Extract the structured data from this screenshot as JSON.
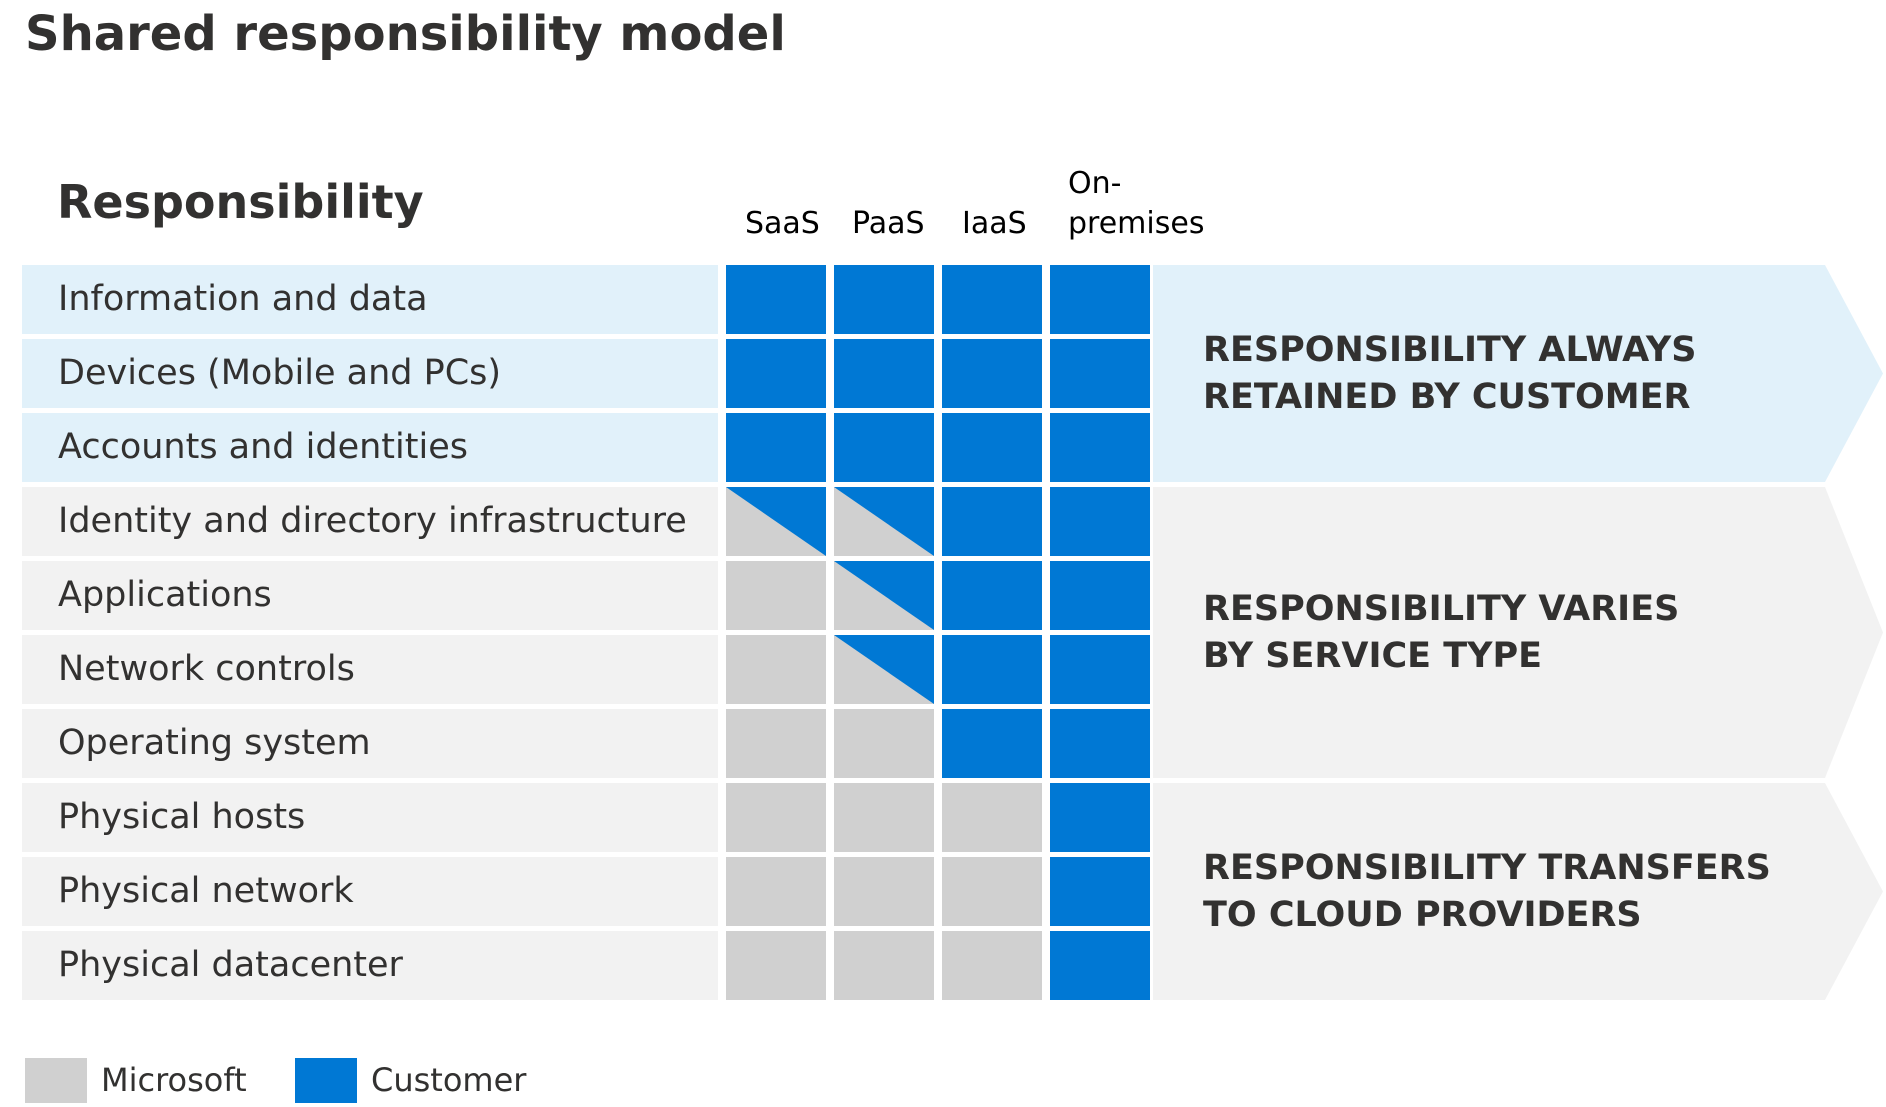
{
  "title": "Shared responsibility model",
  "header": {
    "responsibility": "Responsibility",
    "columns": [
      {
        "line1": "SaaS",
        "line2": ""
      },
      {
        "line1": "PaaS",
        "line2": ""
      },
      {
        "line1": "IaaS",
        "line2": ""
      },
      {
        "line1": "On-",
        "line2": "premises"
      }
    ]
  },
  "rows": [
    {
      "label": "Information and data",
      "zone": "customer",
      "cells": [
        "customer",
        "customer",
        "customer",
        "customer"
      ]
    },
    {
      "label": "Devices (Mobile and PCs)",
      "zone": "customer",
      "cells": [
        "customer",
        "customer",
        "customer",
        "customer"
      ]
    },
    {
      "label": "Accounts and identities",
      "zone": "customer",
      "cells": [
        "customer",
        "customer",
        "customer",
        "customer"
      ]
    },
    {
      "label": "Identity and directory infrastructure",
      "zone": "varies",
      "cells": [
        "shared",
        "shared",
        "customer",
        "customer"
      ]
    },
    {
      "label": "Applications",
      "zone": "varies",
      "cells": [
        "microsoft",
        "shared",
        "customer",
        "customer"
      ]
    },
    {
      "label": "Network controls",
      "zone": "varies",
      "cells": [
        "microsoft",
        "shared",
        "customer",
        "customer"
      ]
    },
    {
      "label": "Operating system",
      "zone": "varies",
      "cells": [
        "microsoft",
        "microsoft",
        "customer",
        "customer"
      ]
    },
    {
      "label": "Physical hosts",
      "zone": "transfers",
      "cells": [
        "microsoft",
        "microsoft",
        "microsoft",
        "customer"
      ]
    },
    {
      "label": "Physical network",
      "zone": "transfers",
      "cells": [
        "microsoft",
        "microsoft",
        "microsoft",
        "customer"
      ]
    },
    {
      "label": "Physical datacenter",
      "zone": "transfers",
      "cells": [
        "microsoft",
        "microsoft",
        "microsoft",
        "customer"
      ]
    }
  ],
  "bands": [
    {
      "id": "always",
      "line1": "RESPONSIBILITY ALWAYS",
      "line2": "RETAINED BY CUSTOMER",
      "first_row": 0,
      "last_row": 2,
      "color": "#e1f1fa"
    },
    {
      "id": "varies",
      "line1": "RESPONSIBILITY VARIES",
      "line2": "BY SERVICE TYPE",
      "first_row": 3,
      "last_row": 6,
      "color": "#f2f2f2"
    },
    {
      "id": "transfers",
      "line1": "RESPONSIBILITY TRANSFERS",
      "line2": "TO CLOUD PROVIDERS",
      "first_row": 7,
      "last_row": 9,
      "color": "#f2f2f2"
    }
  ],
  "legend": [
    {
      "key": "microsoft",
      "label": "Microsoft",
      "color": "#d0d0d0"
    },
    {
      "key": "customer",
      "label": "Customer",
      "color": "#0078d4"
    }
  ],
  "colors": {
    "customer": "#0078d4",
    "microsoft": "#d0d0d0",
    "customer_zone_bg": "#e1f1fa",
    "other_zone_bg": "#f2f2f2"
  }
}
